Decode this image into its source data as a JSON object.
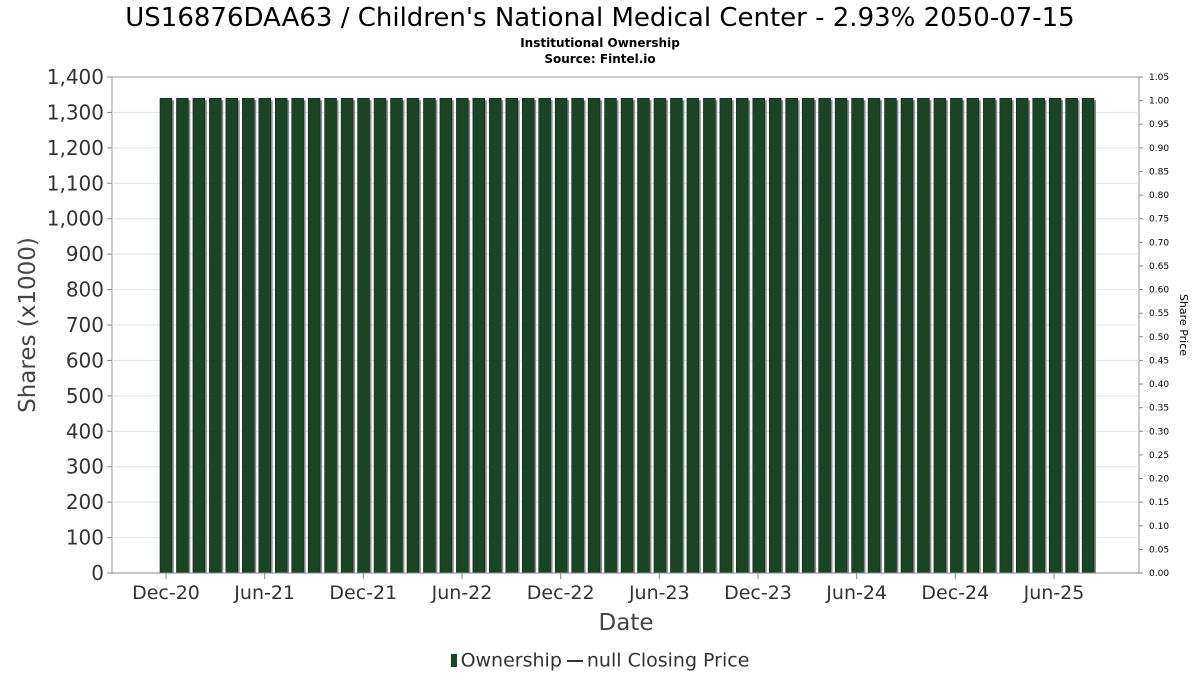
{
  "chart_data": {
    "type": "bar",
    "title": "US16876DAA63 / Children's National Medical Center - 2.93% 2050-07-15",
    "subtitle": "Institutional Ownership",
    "source": "Source: Fintel.io",
    "xlabel": "Date",
    "ylabel": "Shares (x1000)",
    "y2label": "Share Price",
    "ylim": [
      0,
      1400
    ],
    "y2lim": [
      0,
      1.05
    ],
    "yticks": [
      "0",
      "100",
      "200",
      "300",
      "400",
      "500",
      "600",
      "700",
      "800",
      "900",
      "1,000",
      "1,100",
      "1,200",
      "1,300",
      "1,400"
    ],
    "y2ticks": [
      "0.00",
      "0.05",
      "0.10",
      "0.15",
      "0.20",
      "0.25",
      "0.30",
      "0.35",
      "0.40",
      "0.45",
      "0.50",
      "0.55",
      "0.60",
      "0.65",
      "0.70",
      "0.75",
      "0.80",
      "0.85",
      "0.90",
      "0.95",
      "1.00",
      "1.05"
    ],
    "xticks": [
      "Dec-20",
      "Jun-21",
      "Dec-21",
      "Jun-22",
      "Dec-22",
      "Jun-23",
      "Dec-23",
      "Jun-24",
      "Dec-24",
      "Jun-25"
    ],
    "grid": true,
    "legend_position": "bottom",
    "series": [
      {
        "name": "Ownership",
        "color": "#1b4426",
        "values": [
          1340,
          1340,
          1340,
          1340,
          1340,
          1340,
          1340,
          1340,
          1340,
          1340,
          1340,
          1340,
          1340,
          1340,
          1340,
          1340,
          1340,
          1340,
          1340,
          1340,
          1340,
          1340,
          1340,
          1340,
          1340,
          1340,
          1340,
          1340,
          1340,
          1340,
          1340,
          1340,
          1340,
          1340,
          1340,
          1340,
          1340,
          1340,
          1340,
          1340,
          1340,
          1340,
          1340,
          1340,
          1340,
          1340,
          1340,
          1340,
          1340,
          1340,
          1340,
          1340,
          1340,
          1340,
          1340,
          1340,
          1340
        ]
      },
      {
        "name": "null Closing Price",
        "color": "#333333",
        "values": []
      }
    ]
  }
}
